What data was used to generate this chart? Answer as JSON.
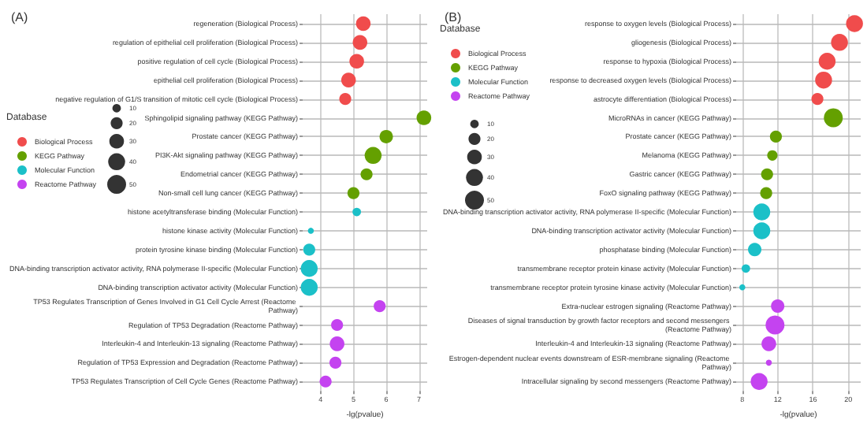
{
  "chart_data": [
    {
      "type": "bubble",
      "title": "(A)",
      "orientation": "horizontal",
      "xlabel": "-lg(pvalue)",
      "legend_title": "Database",
      "legend": "left",
      "grid": true,
      "size_legend": [
        10,
        20,
        30,
        40,
        50
      ],
      "xlim": [
        3.45,
        7.25
      ],
      "xticks": [
        4,
        5,
        6,
        7
      ],
      "categories": [
        "regeneration (Biological Process)",
        "regulation of epithelial cell proliferation (Biological Process)",
        "positive regulation of cell cycle (Biological Process)",
        "epithelial cell proliferation (Biological Process)",
        "negative regulation of G1/S transition of mitotic cell cycle (Biological Process)",
        "Sphingolipid signaling pathway (KEGG Pathway)",
        "Prostate cancer (KEGG Pathway)",
        "PI3K-Akt signaling pathway (KEGG Pathway)",
        "Endometrial cancer (KEGG Pathway)",
        "Non-small cell lung cancer (KEGG Pathway)",
        "histone acetyltransferase binding (Molecular Function)",
        "histone kinase activity (Molecular Function)",
        "protein tyrosine kinase binding (Molecular Function)",
        "DNA-binding transcription activator activity, RNA polymerase II-specific (Molecular Function)",
        "DNA-binding transcription activator activity (Molecular Function)",
        "TP53 Regulates Transcription of Genes Involved in G1 Cell Cycle Arrest (Reactome Pathway)",
        "Regulation of TP53 Degradation (Reactome Pathway)",
        "Interleukin-4 and Interleukin-13 signaling (Reactome Pathway)",
        "Regulation of TP53 Expression and Degradation (Reactome Pathway)",
        "TP53 Regulates Transcription of Cell Cycle Genes (Reactome Pathway)"
      ],
      "series": [
        {
          "name": "Biological Process",
          "color": "#f04c4c",
          "values": [
            5.3,
            5.2,
            5.1,
            4.85,
            4.75,
            null,
            null,
            null,
            null,
            null,
            null,
            null,
            null,
            null,
            null,
            null,
            null,
            null,
            null,
            null
          ],
          "sizes": [
            30,
            30,
            30,
            30,
            20,
            null,
            null,
            null,
            null,
            null,
            null,
            null,
            null,
            null,
            null,
            null,
            null,
            null,
            null,
            null
          ]
        },
        {
          "name": "KEGG Pathway",
          "color": "#64a000",
          "values": [
            null,
            null,
            null,
            null,
            null,
            7.15,
            6.0,
            5.6,
            5.4,
            5.0,
            null,
            null,
            null,
            null,
            null,
            null,
            null,
            null,
            null,
            null
          ],
          "sizes": [
            null,
            null,
            null,
            null,
            null,
            30,
            25,
            40,
            20,
            20,
            null,
            null,
            null,
            null,
            null,
            null,
            null,
            null,
            null,
            null
          ]
        },
        {
          "name": "Molecular Function",
          "color": "#1bc0c8",
          "values": [
            null,
            null,
            null,
            null,
            null,
            null,
            null,
            null,
            null,
            null,
            5.1,
            3.7,
            3.65,
            3.65,
            3.65,
            null,
            null,
            null,
            null,
            null
          ],
          "sizes": [
            null,
            null,
            null,
            null,
            null,
            null,
            null,
            null,
            null,
            null,
            10,
            5,
            20,
            40,
            40,
            null,
            null,
            null,
            null,
            null
          ]
        },
        {
          "name": "Reactome Pathway",
          "color": "#c443f0",
          "values": [
            null,
            null,
            null,
            null,
            null,
            null,
            null,
            null,
            null,
            null,
            null,
            null,
            null,
            null,
            null,
            5.8,
            4.5,
            4.5,
            4.45,
            4.15
          ],
          "sizes": [
            null,
            null,
            null,
            null,
            null,
            null,
            null,
            null,
            null,
            null,
            null,
            null,
            null,
            null,
            null,
            20,
            20,
            30,
            20,
            20
          ]
        }
      ]
    },
    {
      "type": "bubble",
      "title": "(B)",
      "orientation": "horizontal",
      "xlabel": "-lg(pvalue)",
      "legend_title": "Database",
      "legend": "top left",
      "grid": true,
      "size_legend": [
        10,
        20,
        30,
        40,
        50
      ],
      "xlim": [
        7.3,
        21.4
      ],
      "xticks": [
        8,
        12,
        16,
        20
      ],
      "categories": [
        "response to oxygen levels (Biological Process)",
        "gliogenesis (Biological Process)",
        "response to hypoxia (Biological Process)",
        "response to decreased oxygen levels (Biological Process)",
        "astrocyte differentiation (Biological Process)",
        "MicroRNAs in cancer (KEGG Pathway)",
        "Prostate cancer (KEGG Pathway)",
        "Melanoma (KEGG Pathway)",
        "Gastric cancer (KEGG Pathway)",
        "FoxO signaling pathway (KEGG Pathway)",
        "DNA-binding transcription activator activity, RNA polymerase II-specific (Molecular Function)",
        "DNA-binding transcription activator activity (Molecular Function)",
        "phosphatase binding (Molecular Function)",
        "transmembrane receptor protein kinase activity (Molecular Function)",
        "transmembrane receptor protein tyrosine kinase activity (Molecular Function)",
        "Extra-nuclear estrogen signaling (Reactome Pathway)",
        "Diseases of signal transduction by growth factor receptors and second messengers (Reactome Pathway)",
        "Interleukin-4 and Interleukin-13 signaling (Reactome Pathway)",
        "Estrogen-dependent nuclear events downstream of ESR-membrane signaling (Reactome Pathway)",
        "Intracellular signaling by second messengers (Reactome Pathway)"
      ],
      "series": [
        {
          "name": "Biological Process",
          "color": "#f04c4c",
          "values": [
            20.7,
            19.0,
            17.6,
            17.2,
            16.5,
            null,
            null,
            null,
            null,
            null,
            null,
            null,
            null,
            null,
            null,
            null,
            null,
            null,
            null,
            null
          ],
          "sizes": [
            40,
            40,
            40,
            40,
            20,
            null,
            null,
            null,
            null,
            null,
            null,
            null,
            null,
            null,
            null,
            null,
            null,
            null,
            null,
            null
          ]
        },
        {
          "name": "KEGG Pathway",
          "color": "#64a000",
          "values": [
            null,
            null,
            null,
            null,
            null,
            18.3,
            11.8,
            11.4,
            10.8,
            10.7,
            null,
            null,
            null,
            null,
            null,
            null,
            null,
            null,
            null,
            null
          ],
          "sizes": [
            null,
            null,
            null,
            null,
            null,
            50,
            20,
            15,
            20,
            20,
            null,
            null,
            null,
            null,
            null,
            null,
            null,
            null,
            null,
            null
          ]
        },
        {
          "name": "Molecular Function",
          "color": "#1bc0c8",
          "values": [
            null,
            null,
            null,
            null,
            null,
            null,
            null,
            null,
            null,
            null,
            10.2,
            10.2,
            9.4,
            8.4,
            8.0,
            null,
            null,
            null,
            null,
            null
          ],
          "sizes": [
            null,
            null,
            null,
            null,
            null,
            null,
            null,
            null,
            null,
            null,
            40,
            40,
            25,
            10,
            5,
            null,
            null,
            null,
            null,
            null
          ]
        },
        {
          "name": "Reactome Pathway",
          "color": "#c443f0",
          "values": [
            null,
            null,
            null,
            null,
            null,
            null,
            null,
            null,
            null,
            null,
            null,
            null,
            null,
            null,
            null,
            12.0,
            11.7,
            11.0,
            11.0,
            9.9
          ],
          "sizes": [
            null,
            null,
            null,
            null,
            null,
            null,
            null,
            null,
            null,
            null,
            null,
            null,
            null,
            null,
            null,
            25,
            50,
            30,
            5,
            40
          ]
        }
      ]
    }
  ]
}
